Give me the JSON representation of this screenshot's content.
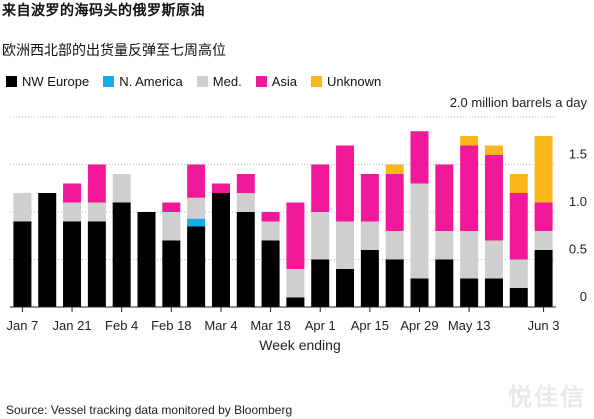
{
  "title": "来自波罗的海码头的俄罗斯原油",
  "subtitle": "欧洲西北部的出货量反弹至七周高位",
  "source": "Source: Vessel tracking data monitored by Bloomberg",
  "watermark": "悦佳信",
  "colors": {
    "NW Europe": "#000000",
    "N. America": "#19a9e8",
    "Med.": "#cfcfcf",
    "Asia": "#f2189a",
    "Unknown": "#fbb61b"
  },
  "chart_data": {
    "type": "bar",
    "stacked": true,
    "x_label": "Week ending",
    "y_unit_label": "2.0 million barrels a day",
    "y_ticks": [
      "0",
      "0.5",
      "1.0",
      "1.5"
    ],
    "ylim": [
      0,
      2.0
    ],
    "grid": "horizontal dotted",
    "legend_position": "top",
    "x_tick_labels": [
      "Jan 7",
      "Jan 21",
      "Feb 4",
      "Feb 18",
      "Mar 4",
      "Mar 18",
      "Apr 1",
      "Apr 15",
      "Apr 29",
      "May 13",
      "Jun 3"
    ],
    "x_tick_indices": [
      0,
      2,
      4,
      6,
      8,
      10,
      12,
      14,
      16,
      18,
      21
    ],
    "series": [
      {
        "name": "NW Europe",
        "values": [
          0.9,
          1.2,
          0.9,
          0.9,
          1.1,
          1.0,
          0.7,
          0.85,
          1.2,
          1.0,
          0.7,
          0.1,
          0.5,
          0.4,
          0.6,
          0.5,
          0.3,
          0.5,
          0.3,
          0.3,
          0.2,
          0.6
        ]
      },
      {
        "name": "N. America",
        "values": [
          0,
          0,
          0,
          0,
          0,
          0,
          0,
          0.08,
          0,
          0,
          0,
          0,
          0,
          0,
          0,
          0,
          0,
          0,
          0,
          0,
          0,
          0
        ]
      },
      {
        "name": "Med.",
        "values": [
          0.3,
          0,
          0.2,
          0.2,
          0.3,
          0,
          0.3,
          0.22,
          0,
          0.2,
          0.2,
          0.3,
          0.5,
          0.5,
          0.3,
          0.3,
          1.0,
          0.3,
          0.5,
          0.4,
          0.3,
          0.2
        ]
      },
      {
        "name": "Asia",
        "values": [
          0,
          0,
          0.2,
          0.4,
          0,
          0,
          0.1,
          0.35,
          0.1,
          0.2,
          0.1,
          0.7,
          0.5,
          0.8,
          0.5,
          0.6,
          0.55,
          0.7,
          0.9,
          0.9,
          0.7,
          0.3
        ]
      },
      {
        "name": "Unknown",
        "values": [
          0,
          0,
          0,
          0,
          0,
          0,
          0,
          0,
          0,
          0,
          0,
          0,
          0,
          0,
          0,
          0.1,
          0,
          0,
          0.1,
          0.1,
          0.2,
          0.7
        ]
      }
    ]
  }
}
